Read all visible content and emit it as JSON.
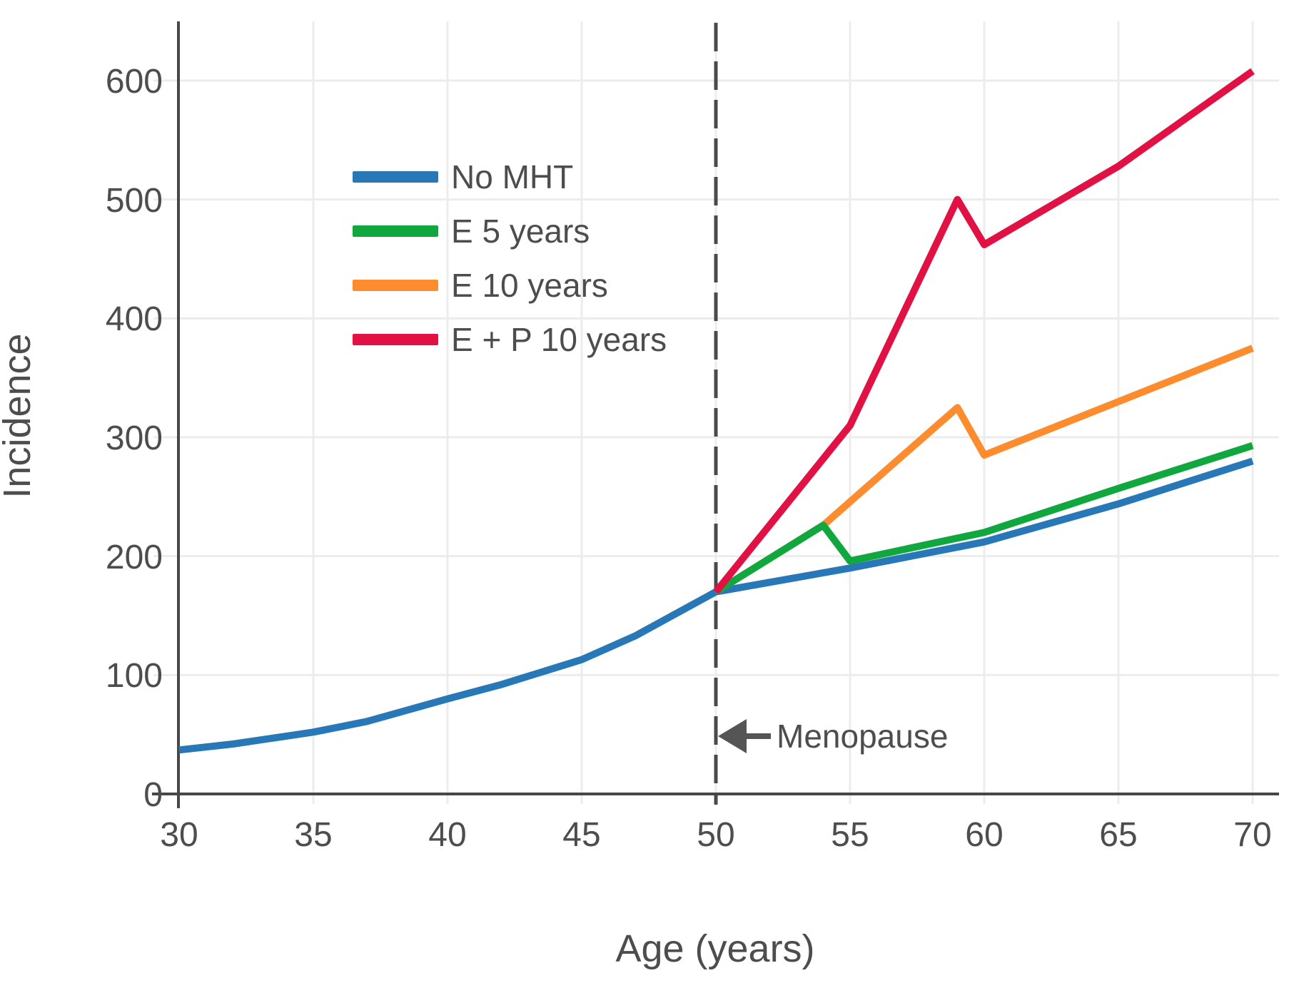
{
  "chart_data": {
    "type": "line",
    "title": "",
    "xlabel": "Age (years)",
    "ylabel": "Incidence",
    "xlim": [
      30,
      71
    ],
    "ylim": [
      0,
      650
    ],
    "grid": true,
    "legend_position": "upper-left-inside",
    "xticks": [
      30,
      35,
      40,
      45,
      50,
      55,
      60,
      65,
      70
    ],
    "yticks": [
      0,
      100,
      200,
      300,
      400,
      500,
      600
    ],
    "xtick_labels": [
      "30",
      "35",
      "40",
      "45",
      "50",
      "55",
      "60",
      "65",
      "70"
    ],
    "ytick_labels": [
      "0",
      "100",
      "200",
      "300",
      "400",
      "500",
      "600"
    ],
    "annotation": {
      "label": "Menopause",
      "arrow_direction": "left",
      "at_x": 50
    },
    "reference_line": {
      "x": 50,
      "style": "dashed",
      "color": "#4a4a4a"
    },
    "colors": {
      "grid": "#ececec",
      "axis": "#474747",
      "text": "#4d4d4d",
      "background": "#ffffff"
    },
    "series": [
      {
        "name": "No MHT",
        "color": "#2878b8",
        "points": [
          [
            30,
            37
          ],
          [
            32,
            42
          ],
          [
            35,
            52
          ],
          [
            37,
            61
          ],
          [
            40,
            80
          ],
          [
            42,
            92
          ],
          [
            45,
            113
          ],
          [
            47,
            133
          ],
          [
            50,
            170
          ],
          [
            55,
            190
          ],
          [
            60,
            212
          ],
          [
            65,
            244
          ],
          [
            70,
            280
          ]
        ]
      },
      {
        "name": "E 5 years",
        "color": "#0fa73e",
        "points": [
          [
            50,
            170
          ],
          [
            54,
            226
          ],
          [
            55,
            196
          ],
          [
            60,
            220
          ],
          [
            65,
            257
          ],
          [
            70,
            293
          ]
        ]
      },
      {
        "name": "E 10 years",
        "color": "#fd8c2e",
        "points": [
          [
            50,
            170
          ],
          [
            54,
            226
          ],
          [
            59,
            325
          ],
          [
            60,
            285
          ],
          [
            65,
            330
          ],
          [
            70,
            375
          ]
        ]
      },
      {
        "name": "E + P 10 years",
        "color": "#e11243",
        "points": [
          [
            50,
            170
          ],
          [
            55,
            310
          ],
          [
            59,
            500
          ],
          [
            60,
            462
          ],
          [
            65,
            528
          ],
          [
            70,
            608
          ]
        ]
      }
    ]
  }
}
